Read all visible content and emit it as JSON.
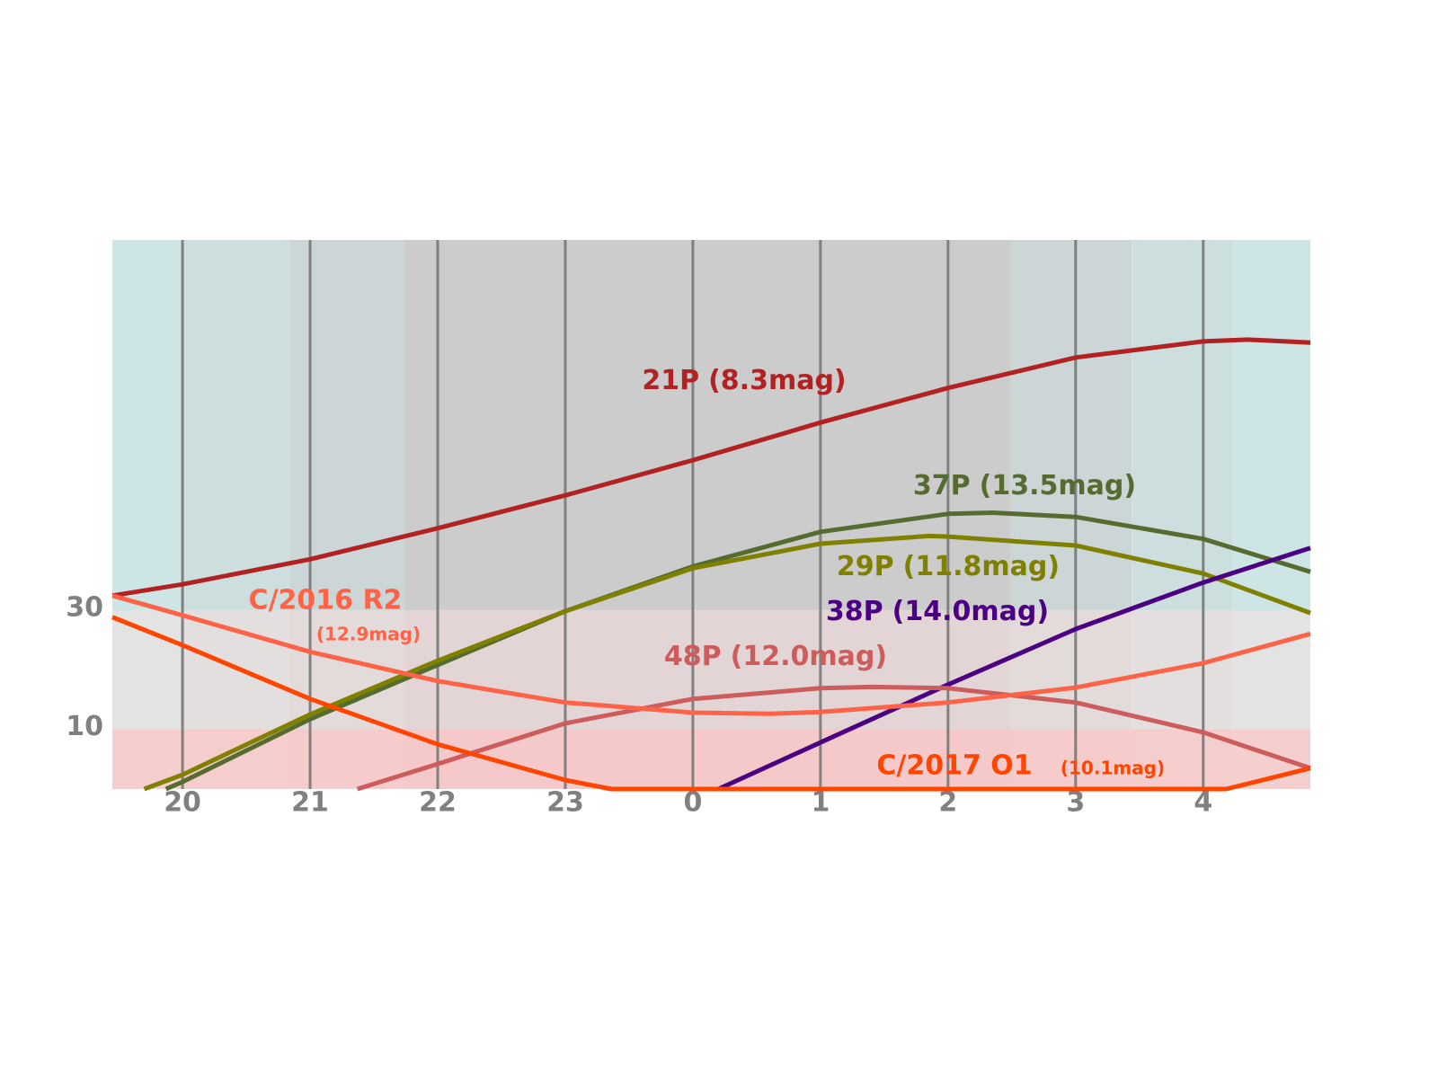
{
  "chart_data": {
    "type": "line",
    "xlim": [
      19.45,
      28.84
    ],
    "ylim": [
      0,
      92
    ],
    "xticks": [
      20,
      21,
      22,
      23,
      {
        "value": 24,
        "label": "0"
      },
      {
        "value": 25,
        "label": "1"
      },
      {
        "value": 26,
        "label": "2"
      },
      {
        "value": 27,
        "label": "3"
      },
      {
        "value": 28,
        "label": "4"
      }
    ],
    "yticks": [
      10,
      30
    ],
    "grid": true,
    "twilight_bands": [
      {
        "from": 19.45,
        "to": 20,
        "color": "#cde5e5"
      },
      {
        "from": 20,
        "to": 20.84,
        "color": "#cddede"
      },
      {
        "from": 20.84,
        "to": 21.74,
        "color": "#ccd6d6"
      },
      {
        "from": 21.74,
        "to": 26.49,
        "color": "#cccccc"
      },
      {
        "from": 26.49,
        "to": 27.44,
        "color": "#ccd6d6"
      },
      {
        "from": 27.44,
        "to": 28.23,
        "color": "#cddede"
      },
      {
        "from": 28.23,
        "to": 28.84,
        "color": "#cde5e5"
      }
    ],
    "altitude_zones": [
      {
        "from": 0,
        "to": 10,
        "color": "rgba(255,200,200,0.8)"
      },
      {
        "from": 10,
        "to": 30,
        "color": "rgba(255,225,225,0.45)"
      }
    ],
    "series": [
      {
        "name": "21P",
        "mag": "(8.3mag)",
        "color": "#b22222",
        "x": [
          19.45,
          20,
          21,
          22,
          23,
          24,
          25,
          26,
          27,
          28,
          28.35,
          28.84
        ],
        "values": [
          32.4,
          34.3,
          38.5,
          43.7,
          49.2,
          55.1,
          61.4,
          67.2,
          72.3,
          75.0,
          75.3,
          74.8
        ]
      },
      {
        "name": "37P",
        "mag": "(13.5mag)",
        "color": "#556b2f",
        "x": [
          19.87,
          20,
          21,
          22,
          23,
          24,
          25,
          26,
          26.35,
          27,
          28,
          28.84
        ],
        "values": [
          0,
          1.2,
          11.7,
          20.8,
          29.8,
          37.3,
          43.1,
          46.1,
          46.3,
          45.6,
          41.9,
          36.4
        ]
      },
      {
        "name": "29P",
        "mag": "(11.8mag)",
        "color": "#808000",
        "x": [
          19.7,
          20,
          21,
          22,
          23,
          24,
          25,
          25.85,
          26,
          27,
          28,
          28.84
        ],
        "values": [
          0,
          2.4,
          12.5,
          21.5,
          29.8,
          37.0,
          41.1,
          42.4,
          42.3,
          40.8,
          36.1,
          29.5
        ]
      },
      {
        "name": "38P",
        "mag": "(14.0mag)",
        "color": "#4b0082",
        "x": [
          24.2,
          25,
          26,
          27,
          28,
          28.84
        ],
        "values": [
          0,
          7.8,
          17.5,
          26.8,
          34.6,
          40.4
        ]
      },
      {
        "name": "48P",
        "mag": "(12.0mag)",
        "color": "#cd5c5c",
        "x": [
          21.37,
          22,
          23,
          24,
          25,
          25.4,
          26,
          27,
          28,
          28.84
        ],
        "values": [
          0,
          4.2,
          11.0,
          15.1,
          16.9,
          17.1,
          16.9,
          14.5,
          9.5,
          3.5
        ]
      },
      {
        "name": "C/2016 R2",
        "mag": "(12.9mag)",
        "color": "#ff6347",
        "x": [
          19.45,
          20,
          21,
          22,
          23,
          24,
          24.6,
          25,
          26,
          27,
          28,
          28.84
        ],
        "values": [
          32.4,
          29.1,
          23.0,
          18.1,
          14.5,
          12.8,
          12.6,
          12.9,
          14.5,
          17.0,
          21.1,
          26.0
        ]
      },
      {
        "name": "C/2017 O1",
        "mag": "(10.1mag)",
        "color": "#ff4500",
        "x": [
          19.45,
          20,
          21,
          22,
          23,
          23.36,
          28.18,
          28.84
        ],
        "values": [
          28.8,
          24.1,
          15.1,
          7.5,
          1.5,
          0,
          0,
          3.5
        ]
      }
    ]
  }
}
